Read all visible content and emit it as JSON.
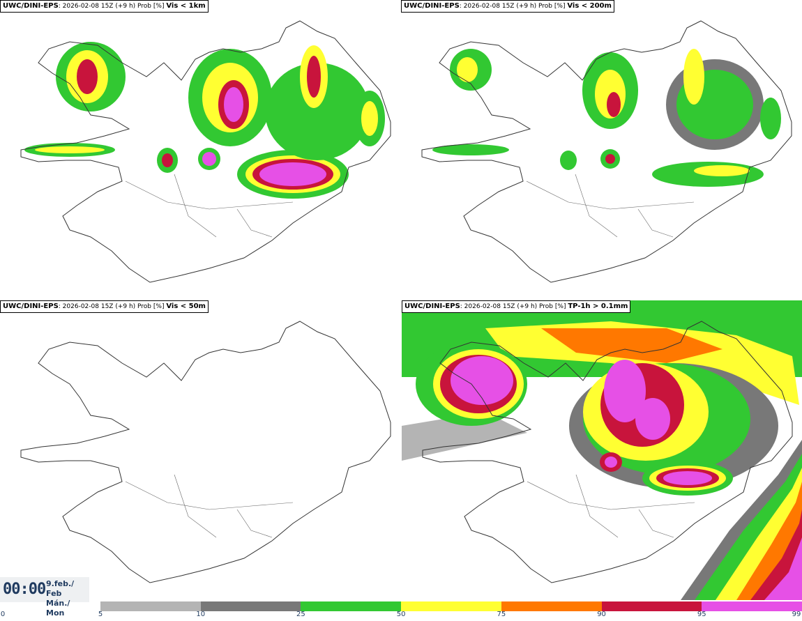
{
  "panels": [
    {
      "model": "UWC/DINI-EPS",
      "run": "2026-02-08 15Z (+9 h) Prob [%]",
      "param": "Vis < 1km"
    },
    {
      "model": "UWC/DINI-EPS",
      "run": "2026-02-08 15Z (+9 h) Prob [%]",
      "param": "Vis < 200m"
    },
    {
      "model": "UWC/DINI-EPS",
      "run": "2026-02-08 15Z (+9 h) Prob [%]",
      "param": "Vis < 50m"
    },
    {
      "model": "UWC/DINI-EPS",
      "run": "2026-02-08 15Z (+9 h) Prob [%]",
      "param": "TP-1h > 0.1mm"
    }
  ],
  "time": {
    "hour": "00:00",
    "date_line1": "9.feb./ Feb",
    "date_line2": "Mán./ Mon"
  },
  "legend": {
    "ticks": [
      "0",
      "5",
      "10",
      "25",
      "50",
      "75",
      "90",
      "95",
      "99"
    ],
    "colors": [
      "#b4b4b4",
      "#787878",
      "#32c832",
      "#ffff32",
      "#ff7800",
      "#c8143c",
      "#e650e6"
    ]
  }
}
